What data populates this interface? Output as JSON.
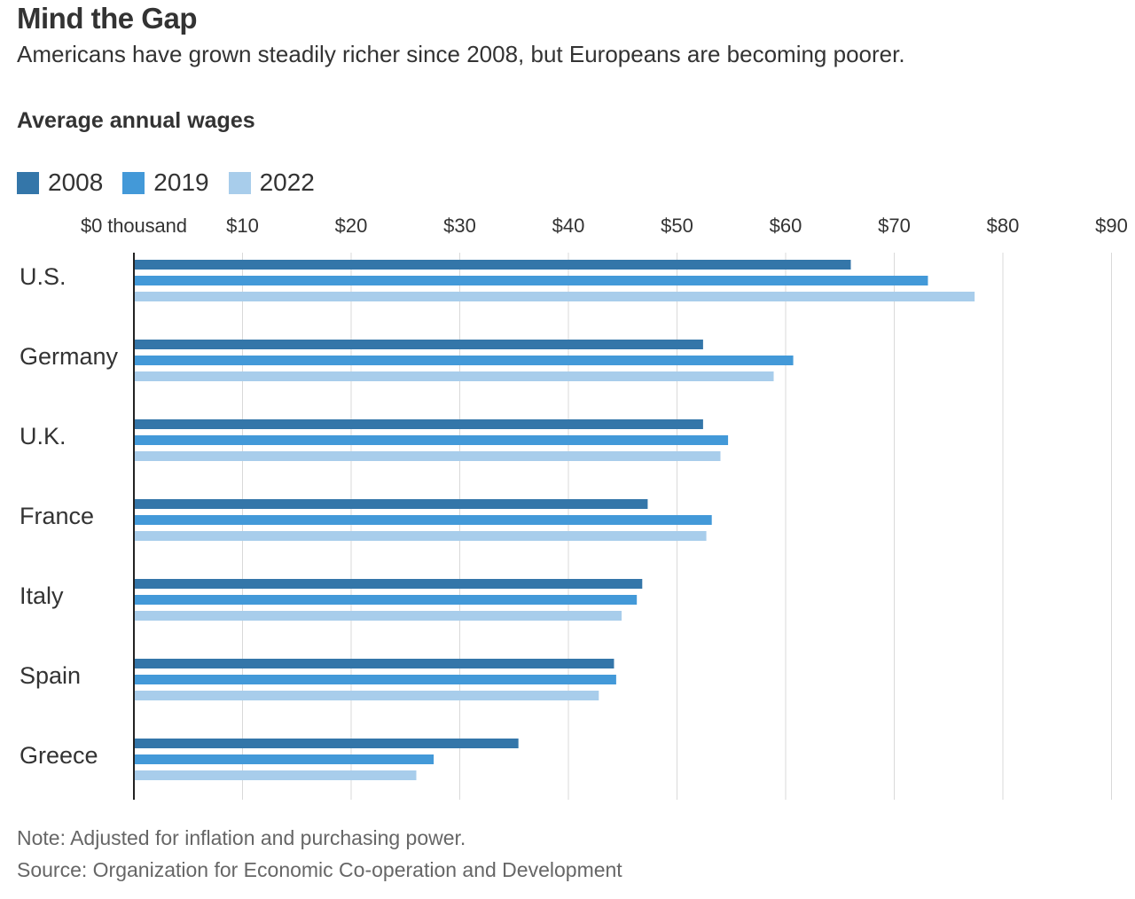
{
  "header": {
    "title": "Mind the Gap",
    "subtitle": "Americans have grown steadily richer since 2008, but Europeans are becoming poorer."
  },
  "footer": {
    "note": "Note: Adjusted for inflation and purchasing power.",
    "source": "Source: Organization for Economic Co-operation and Development"
  },
  "chart_data": {
    "type": "bar",
    "orientation": "horizontal",
    "title": "Average annual wages",
    "xlabel": "",
    "ylabel": "",
    "xlim": [
      0,
      90
    ],
    "x_ticks": [
      0,
      10,
      20,
      30,
      40,
      50,
      60,
      70,
      80,
      90
    ],
    "x_tick_labels": [
      "$0 thousand",
      "$10",
      "$20",
      "$30",
      "$40",
      "$50",
      "$60",
      "$70",
      "$80",
      "$90"
    ],
    "grid": true,
    "legend_position": "top-left",
    "categories": [
      "U.S.",
      "Germany",
      "U.K.",
      "France",
      "Italy",
      "Spain",
      "Greece"
    ],
    "series": [
      {
        "name": "2008",
        "color": "#3476a9",
        "values": [
          66.0,
          52.4,
          52.4,
          47.3,
          46.8,
          44.2,
          35.4
        ]
      },
      {
        "name": "2019",
        "color": "#4399d8",
        "values": [
          73.1,
          60.7,
          54.7,
          53.2,
          46.3,
          44.4,
          27.6
        ]
      },
      {
        "name": "2022",
        "color": "#a8cdeb",
        "values": [
          77.4,
          58.9,
          54.0,
          52.7,
          44.9,
          42.8,
          26.0
        ]
      }
    ]
  }
}
